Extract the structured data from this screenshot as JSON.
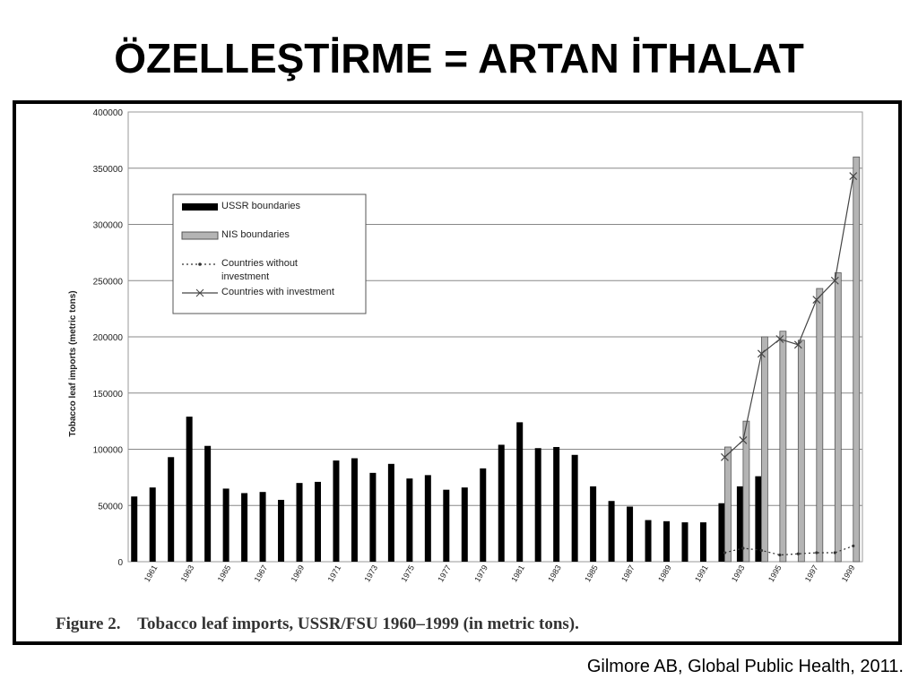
{
  "slide": {
    "title": "ÖZELLEŞTİRME = ARTAN İTHALAT",
    "source": "Gilmore AB, Global Public Health, 2011."
  },
  "chart_data": {
    "type": "bar",
    "caption": "Figure 2.    Tobacco leaf imports, USSR/FSU 1960–1999 (in metric tons).",
    "ylabel": "Tobacco leaf imports (metric tons)",
    "categories": [
      null,
      "1961",
      null,
      "1963",
      null,
      "1965",
      null,
      "1967",
      null,
      "1969",
      null,
      "1971",
      null,
      "1973",
      null,
      "1975",
      null,
      "1977",
      null,
      "1979",
      null,
      "1981",
      null,
      "1983",
      null,
      "1985",
      null,
      "1987",
      null,
      "1989",
      null,
      "1991",
      null,
      "1993",
      null,
      "1995",
      null,
      "1997",
      null,
      "1999"
    ],
    "ylim": [
      0,
      400000
    ],
    "yticks": [
      0,
      50000,
      100000,
      150000,
      200000,
      250000,
      300000,
      350000,
      400000
    ],
    "grid": true,
    "legend": "upper left",
    "series": [
      {
        "name": "USSR boundaries",
        "kind": "bar",
        "color": "#000000",
        "values": [
          58000,
          66000,
          93000,
          129000,
          103000,
          65000,
          61000,
          62000,
          55000,
          70000,
          71000,
          90000,
          92000,
          79000,
          87000,
          74000,
          77000,
          64000,
          66000,
          83000,
          104000,
          124000,
          101000,
          102000,
          95000,
          67000,
          54000,
          49000,
          37000,
          36000,
          35000,
          35000,
          52000,
          67000,
          76000,
          null,
          null,
          null,
          null,
          null
        ]
      },
      {
        "name": "NIS boundaries",
        "kind": "bar",
        "color": "#b4b4b4",
        "values": [
          null,
          null,
          null,
          null,
          null,
          null,
          null,
          null,
          null,
          null,
          null,
          null,
          null,
          null,
          null,
          null,
          null,
          null,
          null,
          null,
          null,
          null,
          null,
          null,
          null,
          null,
          null,
          null,
          null,
          null,
          null,
          null,
          102000,
          125000,
          200000,
          205000,
          197000,
          243000,
          257000,
          360000
        ]
      },
      {
        "name": "Countries without investment",
        "kind": "line",
        "color": "#333333",
        "dash": "2,3",
        "marker": "dot",
        "values": [
          null,
          null,
          null,
          null,
          null,
          null,
          null,
          null,
          null,
          null,
          null,
          null,
          null,
          null,
          null,
          null,
          null,
          null,
          null,
          null,
          null,
          null,
          null,
          null,
          null,
          null,
          null,
          null,
          null,
          null,
          null,
          null,
          8000,
          12000,
          10000,
          6000,
          7000,
          8000,
          8000,
          14000
        ]
      },
      {
        "name": "Countries with investment",
        "kind": "line",
        "color": "#444444",
        "dash": "none",
        "marker": "x",
        "values": [
          null,
          null,
          null,
          null,
          null,
          null,
          null,
          null,
          null,
          null,
          null,
          null,
          null,
          null,
          null,
          null,
          null,
          null,
          null,
          null,
          null,
          null,
          null,
          null,
          null,
          null,
          null,
          null,
          null,
          null,
          null,
          null,
          93000,
          108000,
          185000,
          198000,
          193000,
          233000,
          250000,
          343000
        ]
      }
    ]
  }
}
